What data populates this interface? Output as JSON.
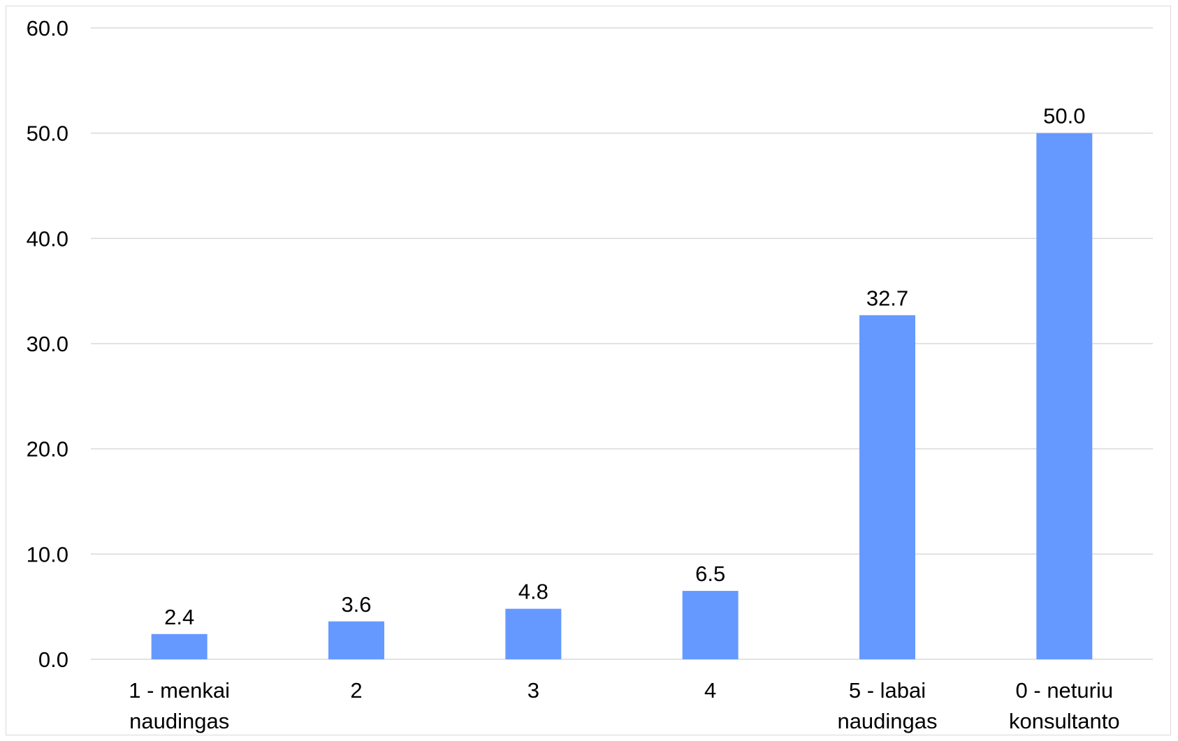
{
  "chart_data": {
    "type": "bar",
    "categories": [
      [
        "1 - menkai",
        "naudingas"
      ],
      [
        "2"
      ],
      [
        "3"
      ],
      [
        "4"
      ],
      [
        "5 - labai",
        "naudingas"
      ],
      [
        "0 - neturiu",
        "konsultanto"
      ]
    ],
    "values": [
      2.4,
      3.6,
      4.8,
      6.5,
      32.7,
      50.0
    ],
    "data_labels": [
      "2.4",
      "3.6",
      "4.8",
      "6.5",
      "32.7",
      "50.0"
    ],
    "y_ticks": [
      "0.0",
      "10.0",
      "20.0",
      "30.0",
      "40.0",
      "50.0",
      "60.0"
    ],
    "ylim": [
      0,
      60
    ],
    "title": "",
    "xlabel": "",
    "ylabel": "",
    "grid": true,
    "legend": "none",
    "bar_color": "#6699ff"
  }
}
